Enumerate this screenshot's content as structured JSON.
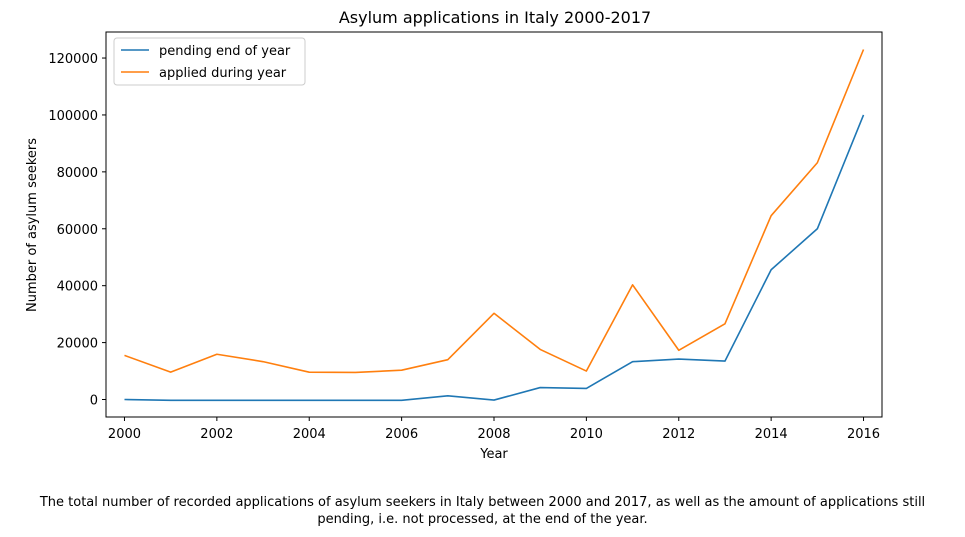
{
  "chart_data": {
    "type": "line",
    "title": "Asylum applications in Italy 2000-2017",
    "xlabel": "Year",
    "ylabel": "Number of asylum seekers",
    "x": [
      2000,
      2001,
      2002,
      2003,
      2004,
      2005,
      2006,
      2007,
      2008,
      2009,
      2010,
      2011,
      2012,
      2013,
      2014,
      2015,
      2016
    ],
    "series": [
      {
        "name": "pending end of year",
        "color": "#1f77b4",
        "values": [
          0,
          -300,
          -300,
          -300,
          -300,
          -300,
          -300,
          1300,
          -200,
          4200,
          3900,
          13300,
          14200,
          13500,
          45600,
          60000,
          100000
        ]
      },
      {
        "name": "applied during year",
        "color": "#ff7f0e",
        "values": [
          15500,
          9600,
          15900,
          13300,
          9600,
          9500,
          10300,
          14000,
          30300,
          17600,
          10000,
          40300,
          17300,
          26600,
          64600,
          83200,
          123000
        ]
      }
    ],
    "xlim": [
      1999.6,
      2016.4
    ],
    "ylim": [
      -6150,
      129150
    ],
    "xticks": [
      2000,
      2002,
      2004,
      2006,
      2008,
      2010,
      2012,
      2014,
      2016
    ],
    "yticks": [
      0,
      20000,
      40000,
      60000,
      80000,
      100000,
      120000
    ],
    "grid": false,
    "legend": "top-left"
  },
  "caption": {
    "line1": "The total number of recorded applications of asylum seekers in Italy between 2000 and 2017, as well as the amount of applications still",
    "line2": "pending, i.e. not processed, at the end of the year."
  }
}
